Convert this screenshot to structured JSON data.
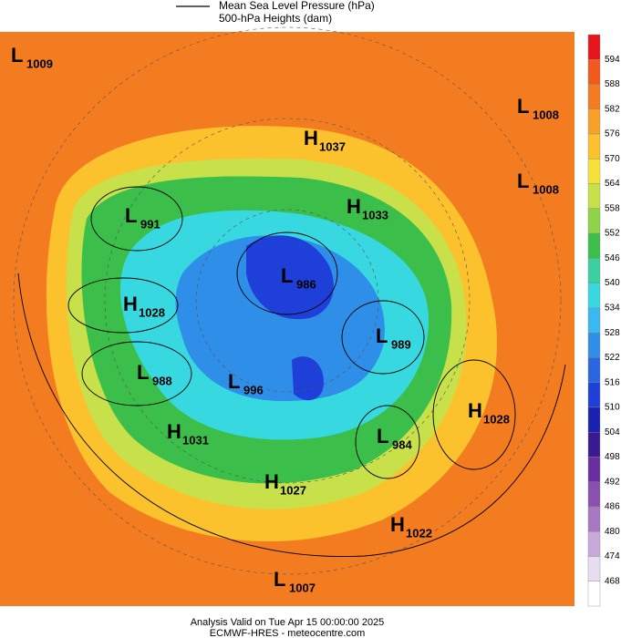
{
  "legend": [
    {
      "label": "Mean Sea Level Pressure (hPa)"
    },
    {
      "label": "500-hPa Heights (dam)"
    }
  ],
  "colorbar": {
    "ticks": [
      594,
      588,
      582,
      576,
      570,
      564,
      558,
      552,
      546,
      540,
      534,
      528,
      522,
      516,
      510,
      504,
      498,
      492,
      486,
      480,
      474,
      468
    ],
    "colors": [
      "#e8141c",
      "#f05a1e",
      "#f47c20",
      "#f7a12a",
      "#fbc22e",
      "#f5e13a",
      "#c8e04a",
      "#8fd34a",
      "#3cbf4a",
      "#3ccfa0",
      "#38d8e0",
      "#3ab8f0",
      "#2e8ee8",
      "#2a66e0",
      "#1e3fd8",
      "#1a20b0",
      "#3a1a90",
      "#6a2ea0",
      "#8a50b0",
      "#a878c0",
      "#c8a8d8",
      "#e8dcf0",
      "#ffffff"
    ]
  },
  "centers": [
    {
      "kind": "L",
      "value": "1009"
    },
    {
      "kind": "L",
      "value": "1008"
    },
    {
      "kind": "H",
      "value": "1037"
    },
    {
      "kind": "L",
      "value": "1008"
    },
    {
      "kind": "H",
      "value": "1033"
    },
    {
      "kind": "L",
      "value": "991"
    },
    {
      "kind": "L",
      "value": "986"
    },
    {
      "kind": "H",
      "value": "1028"
    },
    {
      "kind": "L",
      "value": "989"
    },
    {
      "kind": "L",
      "value": "988"
    },
    {
      "kind": "L",
      "value": "996"
    },
    {
      "kind": "H",
      "value": "1028"
    },
    {
      "kind": "H",
      "value": "1031"
    },
    {
      "kind": "L",
      "value": "984"
    },
    {
      "kind": "H",
      "value": "1027"
    },
    {
      "kind": "H",
      "value": "1022"
    },
    {
      "kind": "L",
      "value": "1007"
    }
  ],
  "footer": {
    "line1": "Analysis Valid on Tue Apr 15 00:00:00 2025",
    "line2": "ECMWF-HRES  - meteocentre.com"
  }
}
